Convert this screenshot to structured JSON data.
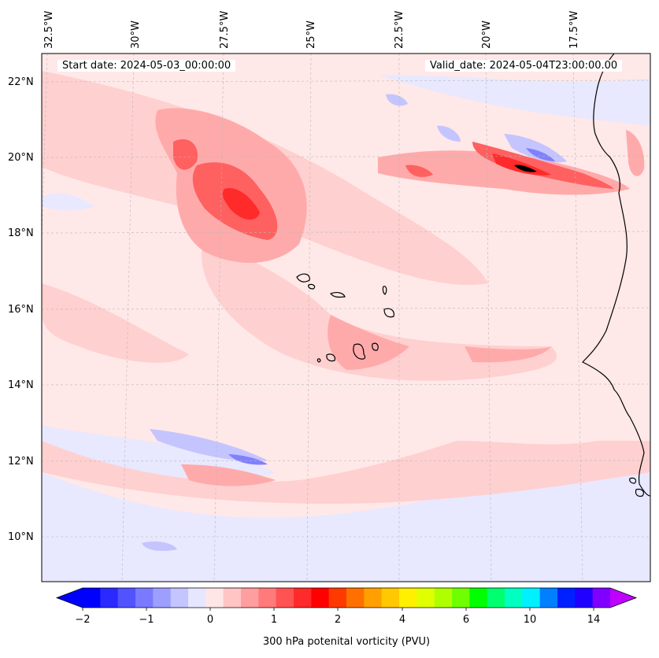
{
  "header": {
    "start_date": "Start date: 2024-05-03_00:00:00",
    "valid_date": "Valid_date: 2024-05-04T23:00:00.00"
  },
  "axes": {
    "lon_labels": [
      "32.5°W",
      "30°W",
      "27.5°W",
      "25°W",
      "22.5°W",
      "20°W",
      "17.5°W"
    ],
    "lat_labels": [
      "22°N",
      "20°N",
      "18°N",
      "16°N",
      "14°N",
      "12°N",
      "10°N"
    ]
  },
  "colorbar": {
    "label": "300 hPa potenital vorticity (PVU)",
    "ticks": [
      "−2",
      "−1",
      "0",
      "1",
      "2",
      "4",
      "6",
      "10",
      "14"
    ],
    "colors": [
      "#0000ff",
      "#2a2aff",
      "#5252ff",
      "#7a7aff",
      "#9e9eff",
      "#c4c4ff",
      "#e6e6ff",
      "#ffe6e6",
      "#ffc4c4",
      "#ff9e9e",
      "#ff7a7a",
      "#ff5252",
      "#ff2a2a",
      "#ff0000",
      "#ff3a00",
      "#ff7000",
      "#ffa000",
      "#ffc800",
      "#fff000",
      "#e0ff00",
      "#b0ff00",
      "#70ff00",
      "#00ff00",
      "#00ff70",
      "#00ffc0",
      "#00f0ff",
      "#0080ff",
      "#0020ff",
      "#2000ff",
      "#8000ff"
    ],
    "extend_low_color": "#0000ff",
    "extend_high_color": "#c000ff"
  },
  "map_colors": {
    "background": "#ffe8e8",
    "light_pink": "#ffd0d0",
    "pink": "#ffaaaa",
    "red": "#ff6060",
    "deep_red": "#ff2a2a",
    "light_blue": "#e8e8ff",
    "blue": "#c4c4ff",
    "deep_blue": "#8080ff",
    "coast": "#000000"
  }
}
